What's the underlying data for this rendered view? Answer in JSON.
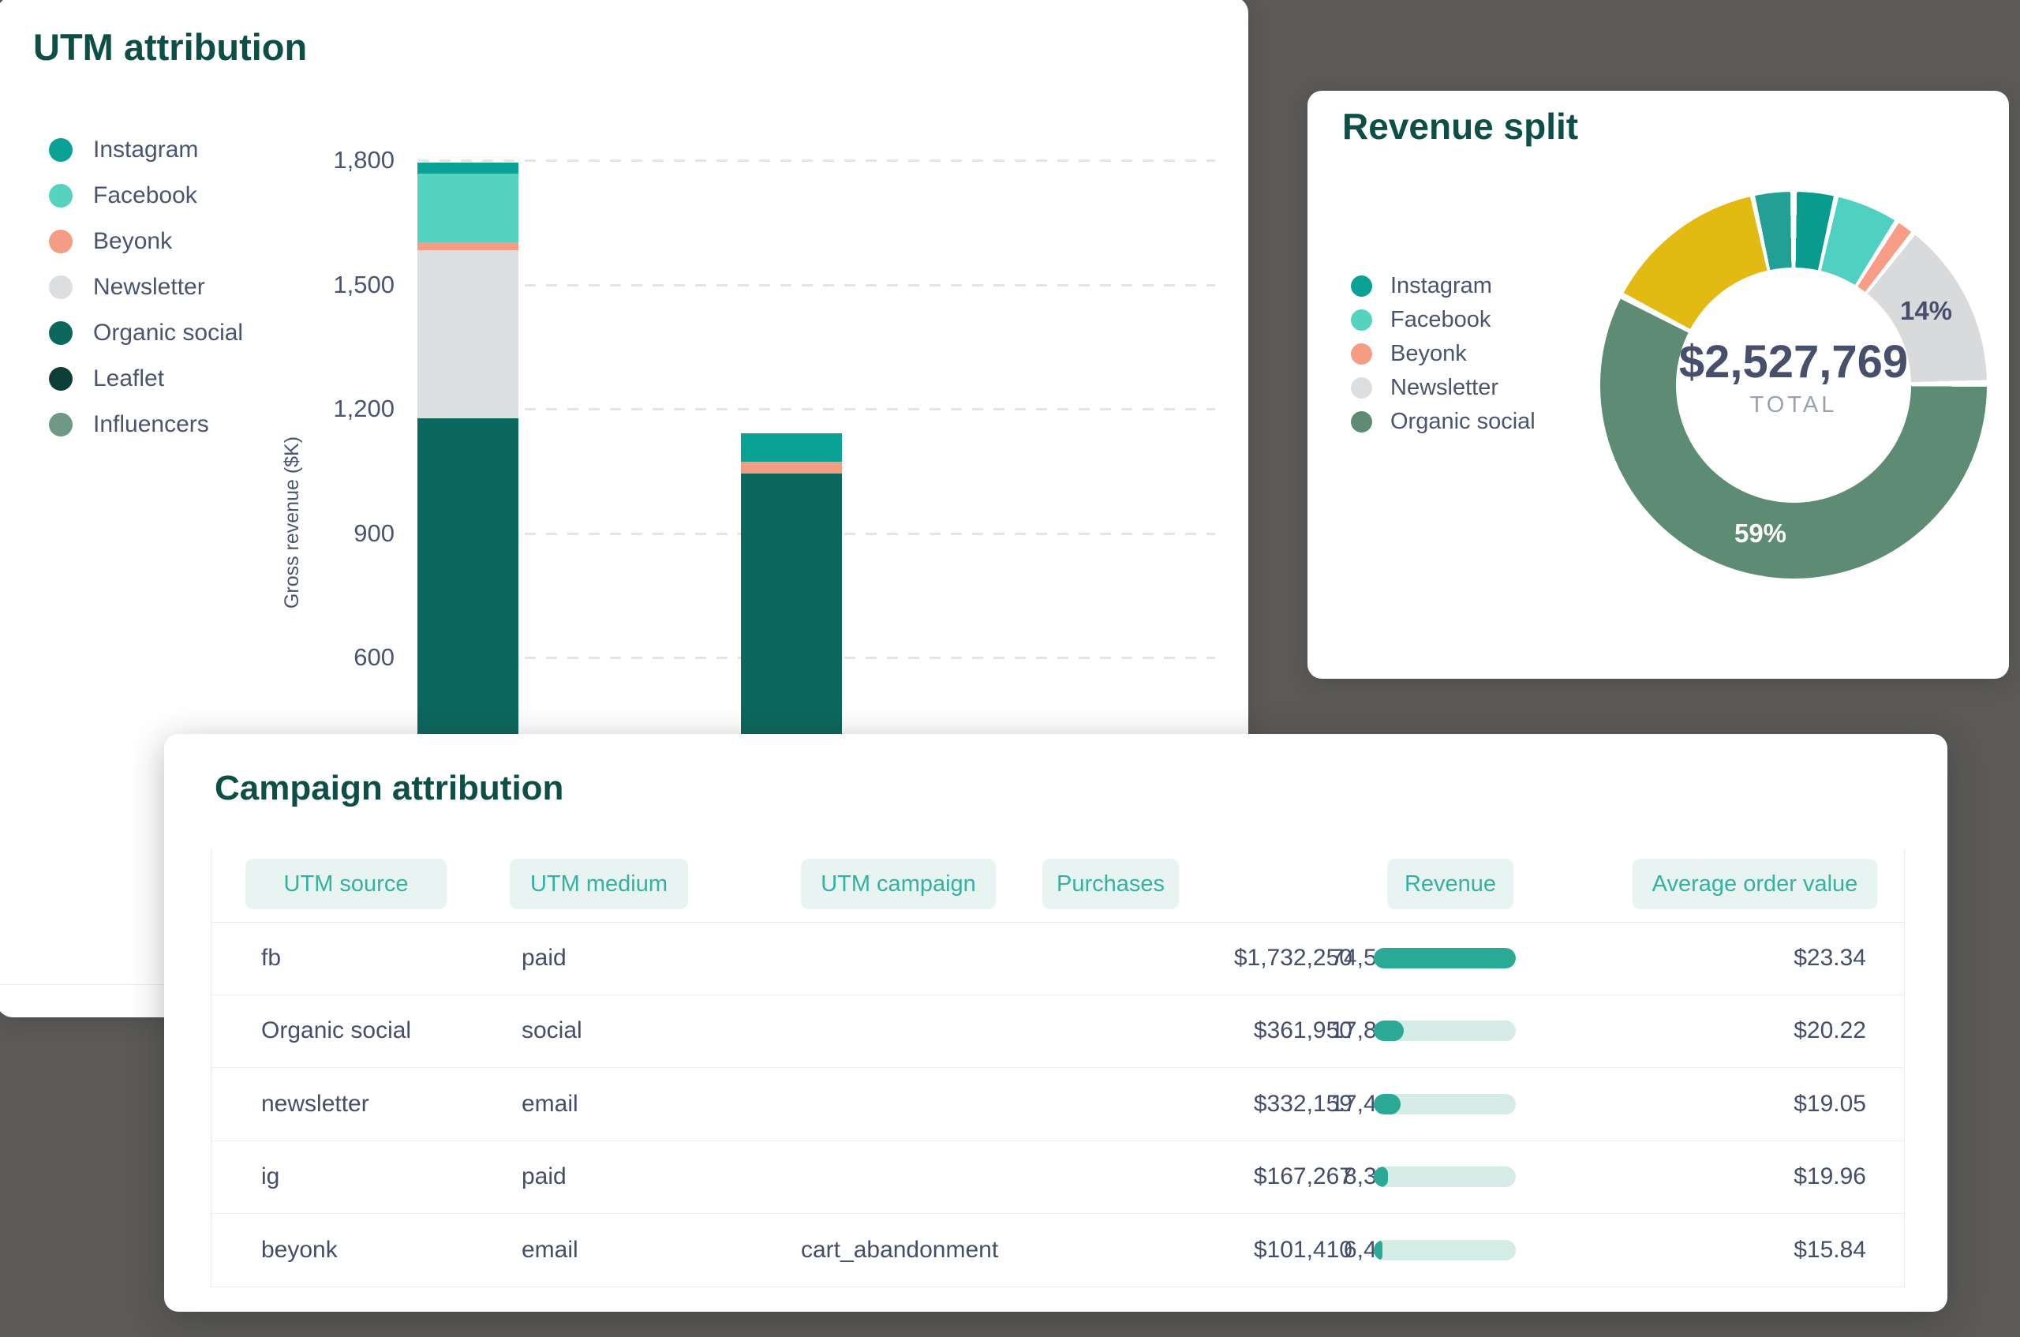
{
  "page": {
    "background_color": "#5b5a58",
    "card_color": "#ffffff"
  },
  "colors": {
    "title_teal": "#0d4f46",
    "text_dark": "#454d6b",
    "text_gray": "#9aa2b1",
    "pill_bg": "#e7f4f1",
    "pill_text": "#36b0a1",
    "progress_fill": "#2aaa96",
    "progress_track": "#d5ebe6"
  },
  "utm_card": {
    "title": "UTM attribution",
    "ylabel": "Gross revenue ($K)",
    "legend": [
      {
        "label": "Instagram",
        "color": "#0aa295"
      },
      {
        "label": "Facebook",
        "color": "#55d2c0"
      },
      {
        "label": "Beyonk",
        "color": "#f59d84"
      },
      {
        "label": "Newsletter",
        "color": "#dcdee0"
      },
      {
        "label": "Organic social",
        "color": "#0c675c"
      },
      {
        "label": "Leaflet",
        "color": "#0d3f38"
      },
      {
        "label": "Influencers",
        "color": "#6f9887"
      }
    ],
    "yticks": [
      {
        "label": "1,800",
        "k": 1800
      },
      {
        "label": "1,500",
        "k": 1500
      },
      {
        "label": "1,200",
        "k": 1200
      },
      {
        "label": "900",
        "k": 900
      },
      {
        "label": "600",
        "k": 600
      }
    ]
  },
  "revenue_card": {
    "title": "Revenue split",
    "legend": [
      {
        "label": "Instagram",
        "color": "#0aa295"
      },
      {
        "label": "Facebook",
        "color": "#55d2c0"
      },
      {
        "label": "Beyonk",
        "color": "#f59d84"
      },
      {
        "label": "Newsletter",
        "color": "#dcdee0"
      },
      {
        "label": "Organic social",
        "color": "#5d8b74"
      }
    ],
    "total_value": "$2,527,769",
    "total_label": "TOTAL",
    "newsletter_slice_label": "14%",
    "organic_slice_label": "59%"
  },
  "campaign_card": {
    "title": "Campaign attribution",
    "columns": [
      "UTM source",
      "UTM medium",
      "UTM campaign",
      "Purchases",
      "Revenue",
      "Average order value"
    ],
    "rows": [
      {
        "source": "fb",
        "medium": "paid",
        "campaign": "",
        "purchases": "74,536",
        "revenue": "$1,732,250",
        "revenue_pct": 100,
        "aov": "$23.34"
      },
      {
        "source": "Organic social",
        "medium": "social",
        "campaign": "",
        "purchases": "17,894",
        "revenue": "$361,950",
        "revenue_pct": 21,
        "aov": "$20.22"
      },
      {
        "source": "newsletter",
        "medium": "email",
        "campaign": "",
        "purchases": "17,432",
        "revenue": "$332,159",
        "revenue_pct": 19,
        "aov": "$19.05"
      },
      {
        "source": "ig",
        "medium": "paid",
        "campaign": "",
        "purchases": "8,376",
        "revenue": "$167,267",
        "revenue_pct": 10,
        "aov": "$19.96"
      },
      {
        "source": "beyonk",
        "medium": "email",
        "campaign": "cart_abandonment",
        "purchases": "6,402",
        "revenue": "$101,410",
        "revenue_pct": 6,
        "aov": "$15.84"
      }
    ]
  },
  "chart_data": [
    {
      "type": "bar",
      "stacked": true,
      "title": "UTM attribution",
      "xlabel": "",
      "ylabel": "Gross revenue ($K)",
      "yticks": [
        1800,
        1500,
        1200,
        900,
        600
      ],
      "grid": "dashed horizontal",
      "legend_position": "left",
      "note": "Bottom of bars and x-axis category labels are hidden behind the overlapping Campaign attribution card; Organic social segments are cut off.",
      "series": [
        "Instagram",
        "Facebook",
        "Beyonk",
        "Newsletter",
        "Organic social",
        "Leaflet",
        "Influencers"
      ],
      "bars": [
        {
          "visible_top_k": 1794,
          "segments": [
            {
              "series": "Instagram",
              "k": 27
            },
            {
              "series": "Facebook",
              "k": 166
            },
            {
              "series": "Beyonk",
              "k": 19
            },
            {
              "series": "Newsletter",
              "k": 404
            },
            {
              "series": "Organic social",
              "k": "rest",
              "visible_k": 1177
            }
          ]
        },
        {
          "visible_top_k": 1141,
          "segments": [
            {
              "series": "Instagram",
              "k": 69
            },
            {
              "series": "Beyonk",
              "k": 29
            },
            {
              "series": "Organic social",
              "k": "rest",
              "visible_k": 1043
            }
          ]
        }
      ]
    },
    {
      "type": "pie",
      "subtype": "donut",
      "title": "Revenue split",
      "center_total": "$2,527,769",
      "center_label": "TOTAL",
      "segments": [
        {
          "name": "Instagram",
          "pct": 3.1,
          "color": "#089b8e",
          "start_deg": 1,
          "end_deg": 12
        },
        {
          "name": "Facebook",
          "pct": 5.0,
          "color": "#4fd0c0",
          "start_deg": 13.5,
          "end_deg": 31.5
        },
        {
          "name": "Beyonk",
          "pct": 1.2,
          "color": "#f79c85",
          "start_deg": 33,
          "end_deg": 37.5
        },
        {
          "name": "Newsletter",
          "pct": 14,
          "color": "#d9dadc",
          "start_deg": 39,
          "end_deg": 88.5,
          "label": "14%"
        },
        {
          "name": "Organic social",
          "pct": 59,
          "color": "#5d8b74",
          "start_deg": 90.5,
          "end_deg": 296.5,
          "label": "59%"
        },
        {
          "name": "unlabeled-yellow",
          "pct": 13.5,
          "color": "#e3ba11",
          "start_deg": 298.5,
          "end_deg": 347
        },
        {
          "name": "unlabeled-teal",
          "pct": 2.9,
          "color": "#23a095",
          "start_deg": 348.5,
          "end_deg": 359
        }
      ]
    }
  ]
}
